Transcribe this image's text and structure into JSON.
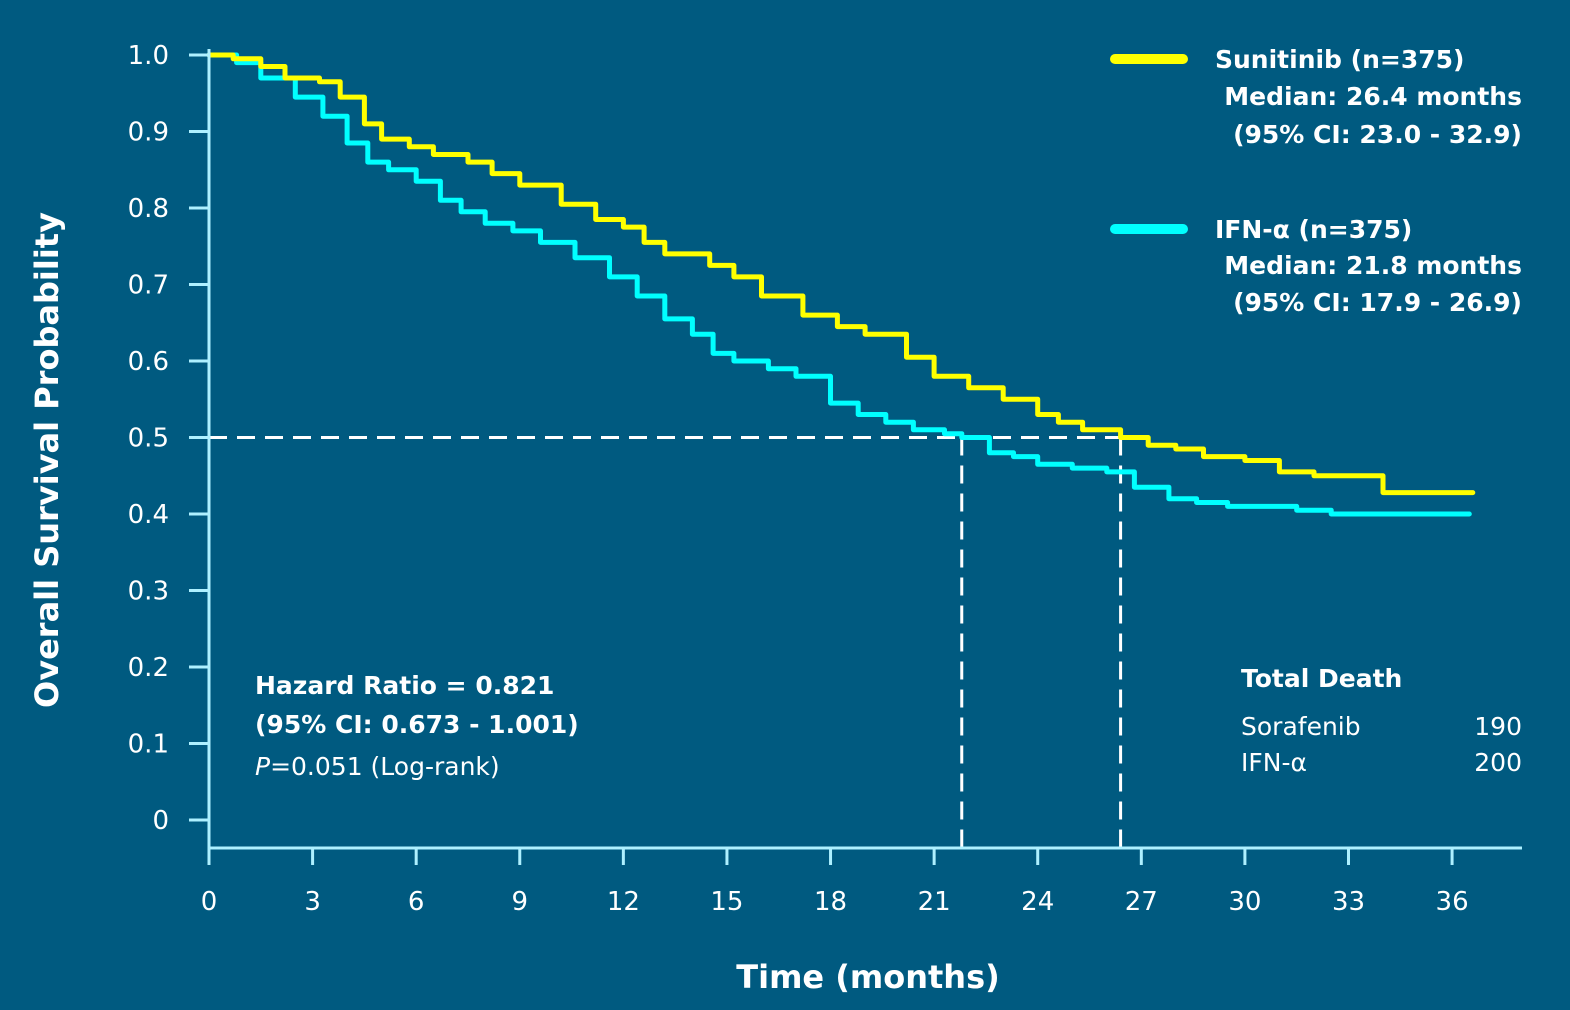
{
  "colors": {
    "background": "#005a80",
    "axis": "#aef0ff",
    "sunitinib": "#ffff00",
    "ifn": "#00ffff",
    "reference": "#ffffff"
  },
  "chart_data": {
    "type": "line",
    "subtype": "kaplan-meier",
    "xlabel": "Time (months)",
    "ylabel": "Overall Survival Probability",
    "xlim": [
      0,
      36.5
    ],
    "ylim": [
      0,
      1.0
    ],
    "x_ticks": [
      0,
      3,
      6,
      9,
      12,
      15,
      18,
      21,
      24,
      27,
      30,
      33,
      36
    ],
    "y_ticks": [
      0,
      0.1,
      0.2,
      0.3,
      0.4,
      0.5,
      0.6,
      0.7,
      0.8,
      0.9,
      1.0
    ],
    "y_tick_labels": [
      "0",
      "0.1",
      "0.2",
      "0.3",
      "0.4",
      "0.5",
      "0.6",
      "0.7",
      "0.8",
      "0.9",
      "1.0"
    ],
    "reference_lines": {
      "horizontal_y": 0.5,
      "vertical_x": [
        21.8,
        26.4
      ]
    },
    "series": [
      {
        "name": "Sunitinib",
        "color": "#ffff00",
        "x": [
          0,
          0.7,
          1.5,
          2.2,
          3.2,
          3.8,
          4.5,
          5.0,
          5.8,
          6.5,
          7.5,
          8.2,
          9.0,
          10.2,
          11.2,
          12.0,
          12.6,
          13.2,
          14.5,
          15.2,
          16.0,
          17.2,
          18.2,
          19.0,
          20.2,
          21.0,
          22.0,
          23.0,
          24.0,
          24.6,
          25.3,
          26.4,
          27.2,
          28.0,
          28.8,
          30.0,
          31.0,
          32.0,
          33.0,
          34.0,
          36.6
        ],
        "y": [
          1.0,
          0.995,
          0.985,
          0.97,
          0.965,
          0.945,
          0.91,
          0.89,
          0.88,
          0.87,
          0.86,
          0.845,
          0.83,
          0.805,
          0.785,
          0.775,
          0.755,
          0.74,
          0.725,
          0.71,
          0.685,
          0.66,
          0.645,
          0.635,
          0.605,
          0.58,
          0.565,
          0.55,
          0.53,
          0.52,
          0.51,
          0.5,
          0.49,
          0.485,
          0.475,
          0.47,
          0.455,
          0.45,
          0.45,
          0.428,
          0.428
        ]
      },
      {
        "name": "IFN-α",
        "color": "#00ffff",
        "x": [
          0,
          0.8,
          1.5,
          2.5,
          3.3,
          4.0,
          4.6,
          5.2,
          6.0,
          6.7,
          7.3,
          8.0,
          8.8,
          9.6,
          10.6,
          11.6,
          12.4,
          13.2,
          14.0,
          14.6,
          15.2,
          16.2,
          17.0,
          18.0,
          18.8,
          19.6,
          20.4,
          21.3,
          21.8,
          22.6,
          23.3,
          24.0,
          25.0,
          26.0,
          26.8,
          27.8,
          28.6,
          29.5,
          30.5,
          31.5,
          32.5,
          34.0,
          36.5
        ],
        "y": [
          1.0,
          0.99,
          0.97,
          0.945,
          0.92,
          0.885,
          0.86,
          0.85,
          0.835,
          0.81,
          0.795,
          0.78,
          0.77,
          0.755,
          0.735,
          0.71,
          0.685,
          0.655,
          0.635,
          0.61,
          0.6,
          0.59,
          0.58,
          0.545,
          0.53,
          0.52,
          0.51,
          0.505,
          0.5,
          0.48,
          0.475,
          0.465,
          0.46,
          0.455,
          0.435,
          0.42,
          0.415,
          0.41,
          0.41,
          0.405,
          0.4,
          0.4,
          0.4
        ]
      }
    ]
  },
  "legend": {
    "sunitinib": {
      "title": "Sunitinib (n=375)",
      "median": "Median: 26.4 months",
      "ci": "(95% CI: 23.0 - 32.9)"
    },
    "ifn": {
      "title": "IFN-α (n=375)",
      "median": "Median: 21.8 months",
      "ci": "(95% CI: 17.9 - 26.9)"
    }
  },
  "stats": {
    "hazard_ratio": "Hazard Ratio = 0.821",
    "hr_ci": "(95% CI: 0.673 - 1.001)",
    "p_label": "P",
    "p_value": "=0.051 (Log-rank)"
  },
  "deaths": {
    "title": "Total Death",
    "rows": [
      {
        "label": "Sorafenib",
        "value": "190"
      },
      {
        "label": "IFN-α",
        "value": "200"
      }
    ]
  }
}
